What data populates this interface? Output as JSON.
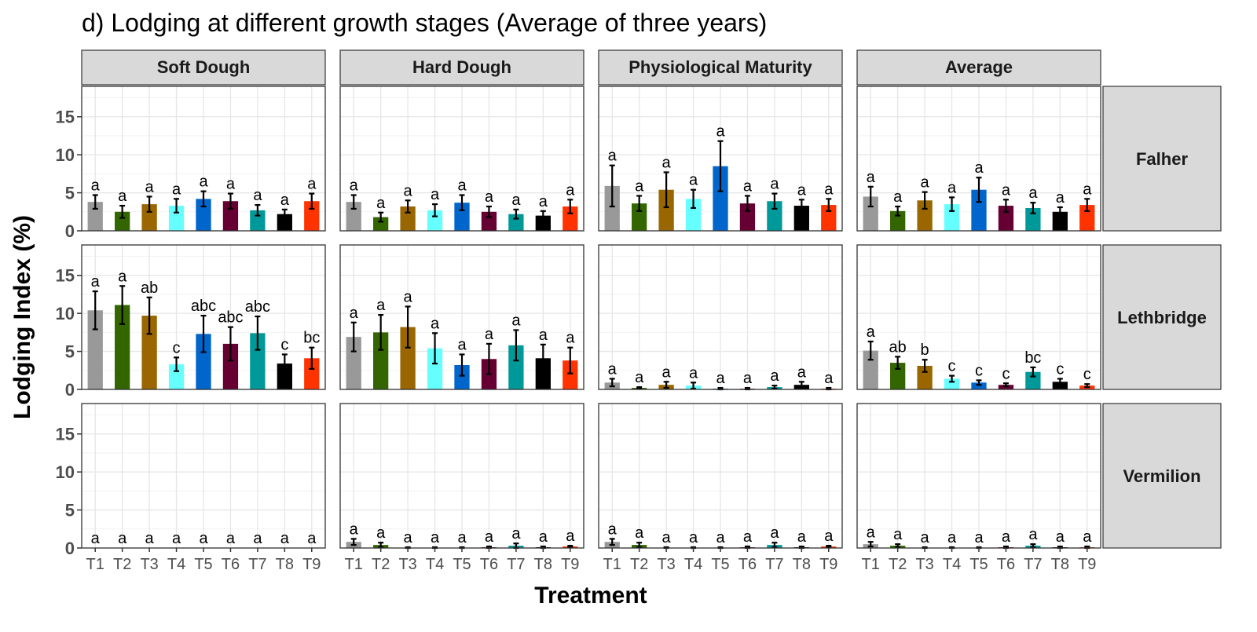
{
  "chart_data": {
    "type": "bar",
    "title": "d) Lodging at different growth stages (Average of three years)",
    "xlabel": "Treatment",
    "ylabel": "Lodging Index (%)",
    "ylim": [
      0,
      19
    ],
    "yticks": [
      "0",
      "5",
      "10",
      "15"
    ],
    "grid": true,
    "categories": [
      "T1",
      "T2",
      "T3",
      "T4",
      "T5",
      "T6",
      "T7",
      "T8",
      "T9"
    ],
    "colors": [
      "#999999",
      "#336600",
      "#996600",
      "#66FFFF",
      "#0066CC",
      "#660033",
      "#009999",
      "#000000",
      "#FF3300"
    ],
    "columns": [
      "Soft Dough",
      "Hard Dough",
      "Physiological Maturity",
      "Average"
    ],
    "rows": [
      "Falher",
      "Lethbridge",
      "Vermilion"
    ],
    "panels": [
      [
        {
          "values": [
            3.8,
            2.5,
            3.5,
            3.3,
            4.2,
            3.9,
            2.7,
            2.2,
            3.9
          ],
          "errors": [
            0.9,
            0.8,
            1.0,
            0.9,
            1.0,
            1.0,
            0.7,
            0.6,
            1.0
          ],
          "labels": [
            "a",
            "a",
            "a",
            "a",
            "a",
            "a",
            "a",
            "a",
            "a"
          ]
        },
        {
          "values": [
            3.8,
            1.8,
            3.2,
            2.7,
            3.7,
            2.5,
            2.2,
            2.0,
            3.2
          ],
          "errors": [
            0.9,
            0.6,
            0.8,
            0.8,
            1.0,
            0.7,
            0.6,
            0.6,
            0.9
          ],
          "labels": [
            "a",
            "a",
            "a",
            "a",
            "a",
            "a",
            "a",
            "a",
            "a"
          ]
        },
        {
          "values": [
            5.9,
            3.6,
            5.4,
            4.2,
            8.5,
            3.6,
            3.9,
            3.3,
            3.4
          ],
          "errors": [
            2.7,
            1.0,
            2.3,
            1.2,
            3.3,
            1.0,
            1.0,
            0.8,
            0.8
          ],
          "labels": [
            "a",
            "a",
            "a",
            "a",
            "a",
            "a",
            "a",
            "a",
            "a"
          ]
        },
        {
          "values": [
            4.5,
            2.6,
            4.0,
            3.5,
            5.4,
            3.3,
            3.0,
            2.5,
            3.4
          ],
          "errors": [
            1.3,
            0.6,
            1.1,
            0.9,
            1.6,
            0.8,
            0.7,
            0.6,
            0.8
          ],
          "labels": [
            "a",
            "a",
            "a",
            "a",
            "a",
            "a",
            "a",
            "a",
            "a"
          ]
        }
      ],
      [
        {
          "values": [
            10.4,
            11.1,
            9.7,
            3.3,
            7.3,
            6.0,
            7.4,
            3.4,
            4.1
          ],
          "errors": [
            2.5,
            2.5,
            2.4,
            0.9,
            2.4,
            2.2,
            2.2,
            1.2,
            1.4
          ],
          "labels": [
            "a",
            "a",
            "ab",
            "c",
            "abc",
            "abc",
            "abc",
            "c",
            "bc"
          ]
        },
        {
          "values": [
            6.9,
            7.5,
            8.2,
            5.4,
            3.2,
            4.0,
            5.8,
            4.1,
            3.8
          ],
          "errors": [
            1.9,
            2.3,
            2.7,
            2.0,
            1.4,
            2.0,
            2.0,
            1.8,
            1.7
          ],
          "labels": [
            "a",
            "a",
            "a",
            "a",
            "a",
            "a",
            "a",
            "a",
            "a"
          ]
        },
        {
          "values": [
            0.9,
            0.2,
            0.6,
            0.5,
            0.1,
            0.1,
            0.3,
            0.6,
            0.1
          ],
          "errors": [
            0.5,
            0.1,
            0.4,
            0.4,
            0.1,
            0.1,
            0.2,
            0.4,
            0.1
          ],
          "labels": [
            "a",
            "a",
            "a",
            "a",
            "a",
            "a",
            "a",
            "a",
            "a"
          ]
        },
        {
          "values": [
            5.1,
            3.5,
            3.1,
            1.4,
            0.9,
            0.6,
            2.3,
            1.0,
            0.5
          ],
          "errors": [
            1.2,
            0.8,
            0.8,
            0.4,
            0.3,
            0.2,
            0.6,
            0.4,
            0.2
          ],
          "labels": [
            "a",
            "ab",
            "b",
            "c",
            "c",
            "c",
            "bc",
            "c",
            "c"
          ]
        }
      ],
      [
        {
          "values": [
            0,
            0,
            0,
            0,
            0,
            0,
            0,
            0,
            0
          ],
          "errors": [
            0,
            0,
            0,
            0,
            0,
            0,
            0,
            0,
            0
          ],
          "labels": [
            "a",
            "a",
            "a",
            "a",
            "a",
            "a",
            "a",
            "a",
            "a"
          ]
        },
        {
          "values": [
            0.8,
            0.4,
            0.05,
            0.05,
            0.05,
            0.1,
            0.3,
            0.1,
            0.2
          ],
          "errors": [
            0.4,
            0.3,
            0.05,
            0.05,
            0.05,
            0.1,
            0.3,
            0.1,
            0.1
          ],
          "labels": [
            "a",
            "a",
            "a",
            "a",
            "a",
            "a",
            "a",
            "a",
            "a"
          ]
        },
        {
          "values": [
            0.8,
            0.4,
            0.05,
            0.05,
            0.05,
            0.1,
            0.4,
            0.1,
            0.2
          ],
          "errors": [
            0.4,
            0.3,
            0.05,
            0.05,
            0.05,
            0.1,
            0.3,
            0.1,
            0.1
          ],
          "labels": [
            "a",
            "a",
            "a",
            "a",
            "a",
            "a",
            "a",
            "a",
            "a"
          ]
        },
        {
          "values": [
            0.5,
            0.3,
            0.05,
            0.05,
            0.05,
            0.1,
            0.3,
            0.1,
            0.1
          ],
          "errors": [
            0.3,
            0.2,
            0.05,
            0.05,
            0.05,
            0.1,
            0.2,
            0.1,
            0.1
          ],
          "labels": [
            "a",
            "a",
            "a",
            "a",
            "a",
            "a",
            "a",
            "a",
            "a"
          ]
        }
      ]
    ]
  }
}
